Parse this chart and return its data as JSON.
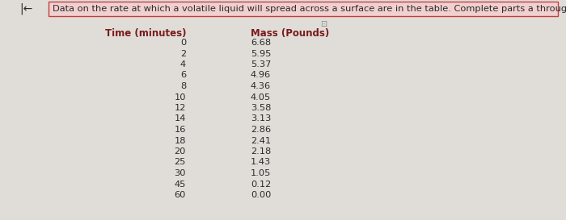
{
  "title": "Data on the rate at which a volatile liquid will spread across a surface are in the table. Complete parts a through c.",
  "col1_header": "Time (minutes)",
  "col2_header": "Mass (Pounds)",
  "times": [
    0,
    2,
    4,
    6,
    8,
    10,
    12,
    14,
    16,
    18,
    20,
    25,
    30,
    45,
    60
  ],
  "masses": [
    6.68,
    5.95,
    5.37,
    4.96,
    4.36,
    4.05,
    3.58,
    3.13,
    2.86,
    2.41,
    2.18,
    1.43,
    1.05,
    0.12,
    0.0
  ],
  "background_color": "#e0ddd8",
  "title_bar_color": "#f2d0d0",
  "title_bar_border": "#c04040",
  "header_color": "#7b1a1a",
  "text_color": "#2a2a2a",
  "figsize": [
    7.0,
    2.73
  ],
  "dpi": 100,
  "title_fontsize": 8.2,
  "header_fontsize": 8.5,
  "data_fontsize": 8.2
}
